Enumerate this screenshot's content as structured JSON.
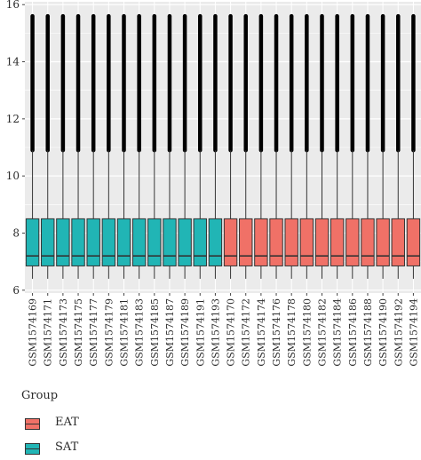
{
  "chart_data": {
    "type": "box",
    "ylim": [
      5.9,
      16.1
    ],
    "yticks": [
      6,
      8,
      10,
      12,
      14,
      16
    ],
    "grid": true,
    "categories": [
      "GSM1574169",
      "GSM1574171",
      "GSM1574173",
      "GSM1574175",
      "GSM1574177",
      "GSM1574179",
      "GSM1574181",
      "GSM1574183",
      "GSM1574185",
      "GSM1574187",
      "GSM1574189",
      "GSM1574191",
      "GSM1574193",
      "GSM1574170",
      "GSM1574172",
      "GSM1574174",
      "GSM1574176",
      "GSM1574178",
      "GSM1574180",
      "GSM1574182",
      "GSM1574184",
      "GSM1574186",
      "GSM1574188",
      "GSM1574190",
      "GSM1574192",
      "GSM1574194"
    ],
    "groups": [
      "SAT",
      "SAT",
      "SAT",
      "SAT",
      "SAT",
      "SAT",
      "SAT",
      "SAT",
      "SAT",
      "SAT",
      "SAT",
      "SAT",
      "SAT",
      "EAT",
      "EAT",
      "EAT",
      "EAT",
      "EAT",
      "EAT",
      "EAT",
      "EAT",
      "EAT",
      "EAT",
      "EAT",
      "EAT",
      "EAT"
    ],
    "box": {
      "min": 6.4,
      "q1": 6.85,
      "median": 7.2,
      "q3": 8.5,
      "whisker_high": 10.9,
      "outlier_max": 15.6
    },
    "legend": {
      "title": "Group",
      "placement": "bottom-left",
      "items": [
        {
          "label": "EAT",
          "color": "#f07167"
        },
        {
          "label": "SAT",
          "color": "#21b5b5"
        }
      ]
    }
  }
}
